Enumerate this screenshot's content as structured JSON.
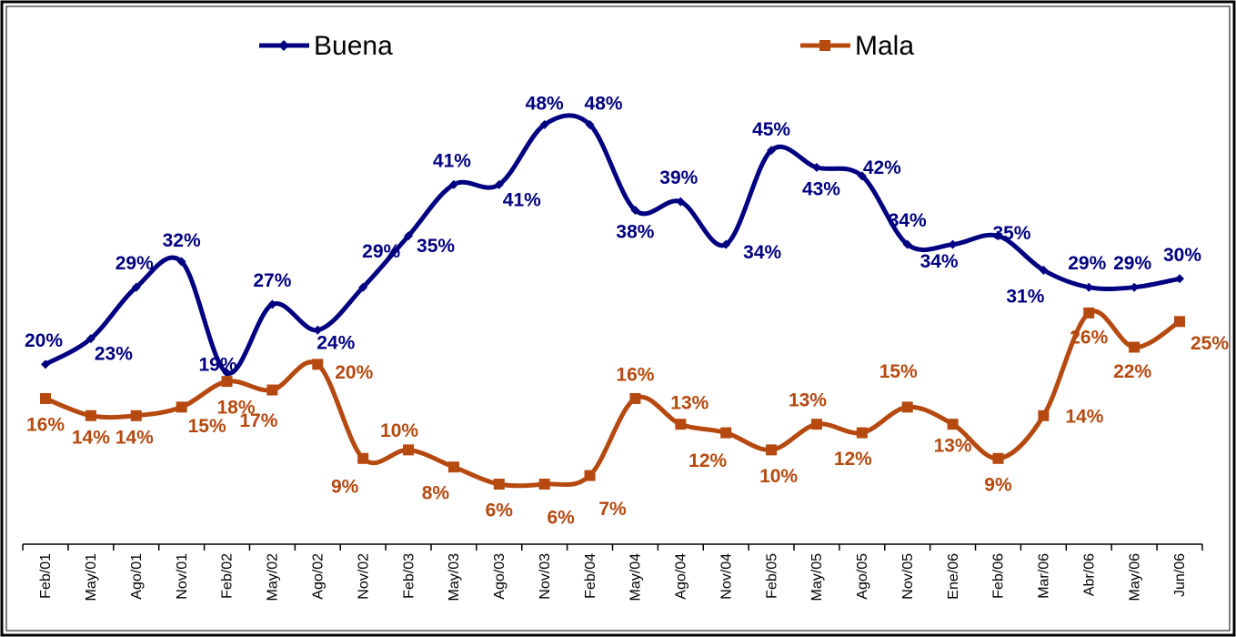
{
  "chart_data": {
    "type": "line",
    "categories": [
      "Feb/01",
      "May/01",
      "Ago/01",
      "Nov/01",
      "Feb/02",
      "May/02",
      "Ago/02",
      "Nov/02",
      "Feb/03",
      "May/03",
      "Ago/03",
      "Nov/03",
      "Feb/04",
      "May/04",
      "Ago/04",
      "Nov/04",
      "Feb/05",
      "May/05",
      "Ago/05",
      "Nov/05",
      "Ene/06",
      "Feb/06",
      "Mar/06",
      "Abr/06",
      "May/06",
      "Jun/06"
    ],
    "series": [
      {
        "name": "Buena",
        "color": "#000080",
        "values": [
          20,
          23,
          29,
          32,
          19,
          27,
          24,
          29,
          35,
          41,
          41,
          48,
          48,
          38,
          39,
          34,
          45,
          43,
          42,
          34,
          34,
          35,
          31,
          29,
          29,
          30
        ],
        "value_labels": [
          "20%",
          "23%",
          "29%",
          "32%",
          "19%",
          "27%",
          "24%",
          "29%",
          "35%",
          "41%",
          "41%",
          "48%",
          "48%",
          "38%",
          "39%",
          "34%",
          "45%",
          "43%",
          "42%",
          "34%",
          "34%",
          "35%",
          "31%",
          "29%",
          "29%",
          "30%"
        ]
      },
      {
        "name": "Mala",
        "color": "#b5490f",
        "values": [
          16,
          14,
          14,
          15,
          18,
          17,
          20,
          9,
          10,
          8,
          6,
          6,
          7,
          16,
          13,
          12,
          10,
          13,
          12,
          15,
          13,
          9,
          14,
          26,
          22,
          25
        ],
        "value_labels": [
          "16%",
          "14%",
          "14%",
          "15%",
          "18%",
          "17%",
          "20%",
          "9%",
          "10%",
          "8%",
          "6%",
          "6%",
          "7%",
          "16%",
          "13%",
          "12%",
          "10%",
          "13%",
          "12%",
          "15%",
          "13%",
          "9%",
          "14%",
          "26%",
          "22%",
          "25%"
        ]
      }
    ]
  }
}
